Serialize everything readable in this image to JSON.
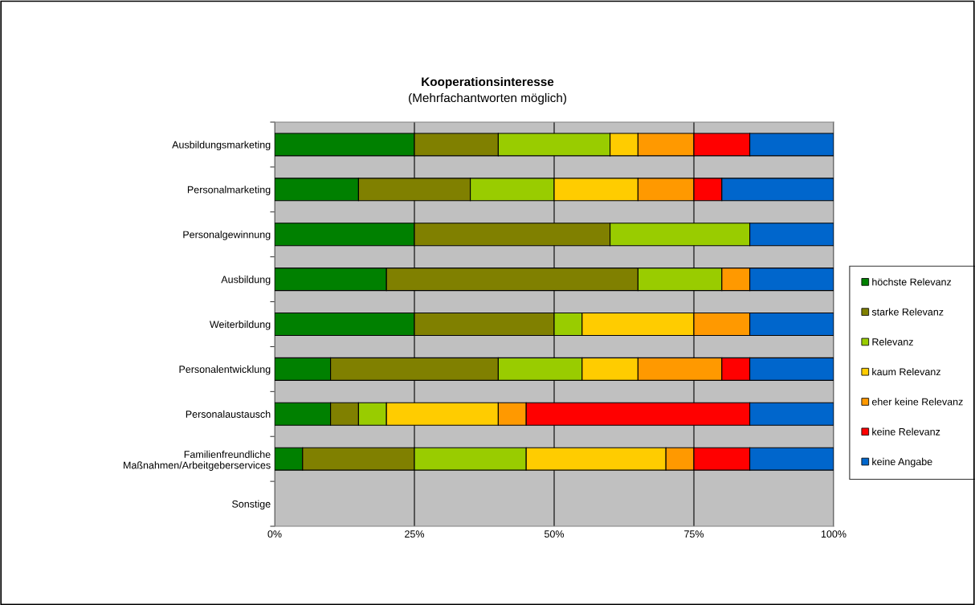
{
  "chart_data": {
    "type": "bar",
    "orientation": "horizontal",
    "stacked": true,
    "title": "Kooperationsinteresse",
    "subtitle": "(Mehrfachantworten möglich)",
    "categories": [
      "Ausbildungsmarketing",
      "Personalmarketing",
      "Personalgewinnung",
      "Ausbildung",
      "Weiterbildung",
      "Personalentwicklung",
      "Personalaustausch",
      "Familienfreundliche\nMaßnahmen/Arbeitgeberservices",
      "Sonstige"
    ],
    "series": [
      {
        "name": "höchste Relevanz",
        "color": "#008000",
        "values": [
          25,
          15,
          25,
          20,
          25,
          10,
          10,
          5,
          0
        ]
      },
      {
        "name": "starke Relevanz",
        "color": "#808000",
        "values": [
          15,
          20,
          35,
          45,
          25,
          30,
          5,
          20,
          0
        ]
      },
      {
        "name": "Relevanz",
        "color": "#99cc00",
        "values": [
          20,
          15,
          25,
          15,
          5,
          15,
          5,
          20,
          0
        ]
      },
      {
        "name": "kaum Relevanz",
        "color": "#ffcc00",
        "values": [
          5,
          15,
          0,
          0,
          20,
          10,
          20,
          25,
          0
        ]
      },
      {
        "name": "eher keine Relevanz",
        "color": "#ff9900",
        "values": [
          10,
          10,
          0,
          5,
          10,
          15,
          5,
          5,
          0
        ]
      },
      {
        "name": "keine Relevanz",
        "color": "#ff0000",
        "values": [
          10,
          5,
          0,
          0,
          0,
          5,
          40,
          10,
          0
        ]
      },
      {
        "name": "keine Angabe",
        "color": "#0066cc",
        "values": [
          15,
          20,
          15,
          15,
          15,
          15,
          15,
          15,
          0
        ]
      }
    ],
    "xlim": [
      0,
      100
    ],
    "xticks": [
      {
        "value": 0,
        "label": "0%"
      },
      {
        "value": 25,
        "label": "25%"
      },
      {
        "value": 50,
        "label": "50%"
      },
      {
        "value": 75,
        "label": "75%"
      },
      {
        "value": 100,
        "label": "100%"
      }
    ],
    "grid": "x",
    "legend": "right"
  }
}
